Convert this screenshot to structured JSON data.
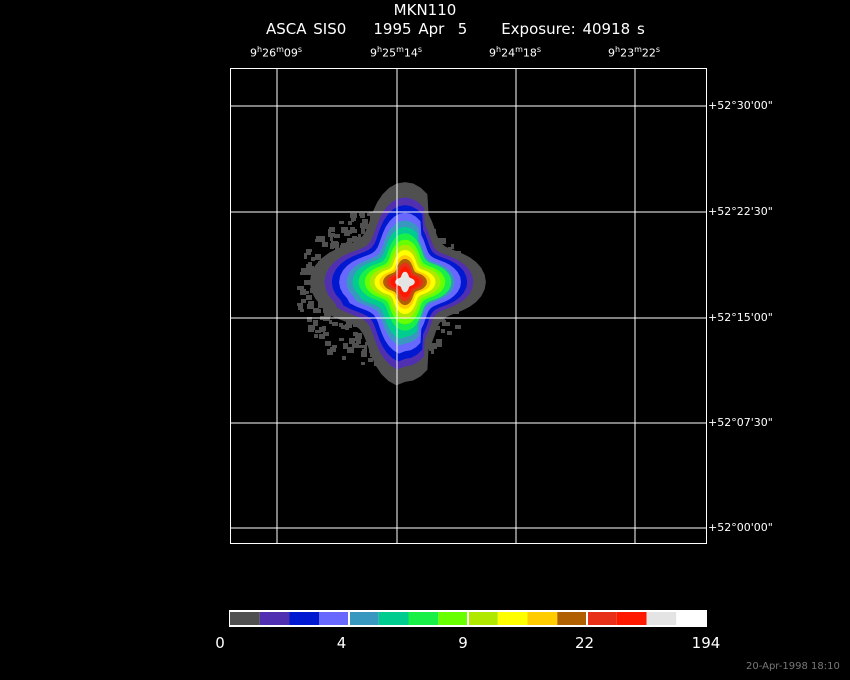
{
  "title": "MKN110",
  "subtitle": {
    "instrument": "ASCA SIS0",
    "date": "1995 Apr  5",
    "exposure": "Exposure: 40918 s"
  },
  "footer": "20-Apr-1998 18:10",
  "chart_data": {
    "type": "heatmap",
    "title": "MKN110",
    "x_ticks": [
      {
        "h": "9",
        "m": "26",
        "s": "09"
      },
      {
        "h": "9",
        "m": "25",
        "s": "14"
      },
      {
        "h": "9",
        "m": "24",
        "s": "18"
      },
      {
        "h": "9",
        "m": "23",
        "s": "22"
      }
    ],
    "y_ticks": [
      "+52°30'00\"",
      "+52°22'30\"",
      "+52°15'00\"",
      "+52°07'30\"",
      "+52°00'00\""
    ],
    "grid": true,
    "colorbar": {
      "tick_labels": [
        "0",
        "4",
        "9",
        "22",
        "194"
      ],
      "colors": [
        "#505050",
        "#5030b0",
        "#0018d0",
        "#6868ff",
        "#3898c0",
        "#00cc90",
        "#18f048",
        "#68ff00",
        "#b0e800",
        "#ffff00",
        "#ffcc00",
        "#b06000",
        "#e83018",
        "#ff1800",
        "#e4e4e4",
        "#ffffff"
      ]
    },
    "source": "MKN110"
  }
}
